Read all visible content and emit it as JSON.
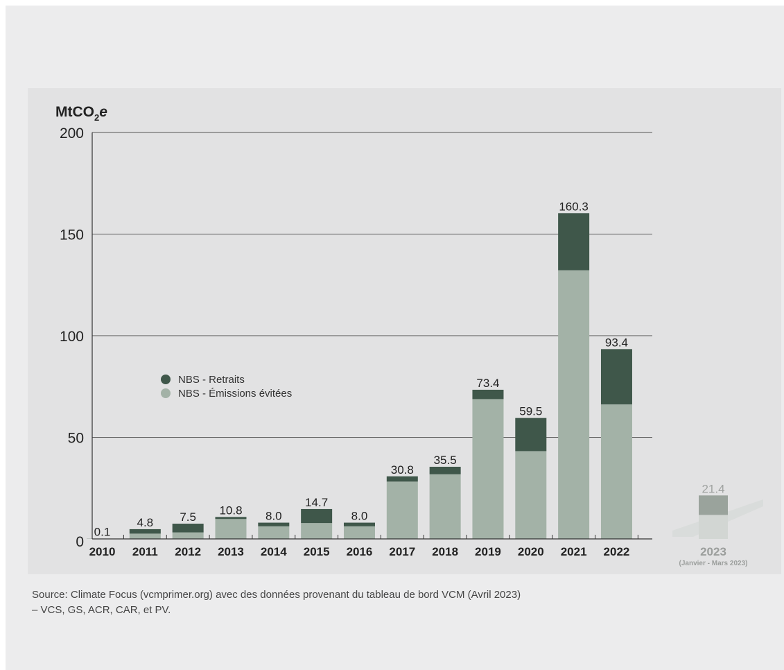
{
  "source_lines": [
    "Source: Climate Focus (vcmprimer.org) avec des données provenant du tableau de bord VCM (Avril 2023)",
    "– VCS, GS, ACR, CAR, et PV."
  ],
  "colors": {
    "retraits": "#3f574a",
    "emissions_evitees": "#a3b2a7",
    "partial_year_retraits": "#9aa39c",
    "partial_year_emissions": "#d2d6d3",
    "axis": "#333333",
    "grid": "#555555"
  },
  "chart_data": {
    "type": "bar",
    "stacked": true,
    "ylabel_main": "MtCO",
    "ylabel_sub": "2",
    "ylabel_italic": "e",
    "ylim": [
      0,
      200
    ],
    "yticks": [
      0,
      50,
      100,
      150,
      200
    ],
    "grid": true,
    "legend_position": "middle-left",
    "categories": [
      "2010",
      "2011",
      "2012",
      "2013",
      "2014",
      "2015",
      "2016",
      "2017",
      "2018",
      "2019",
      "2020",
      "2021",
      "2022"
    ],
    "series": [
      {
        "name": "NBS - Émissions évitées",
        "values": [
          0.05,
          2.6,
          3.2,
          9.8,
          6.2,
          7.8,
          6.2,
          28.2,
          31.8,
          68.8,
          43.2,
          132.2,
          66.2
        ]
      },
      {
        "name": "NBS - Retraits",
        "values": [
          0.05,
          2.2,
          4.3,
          1.0,
          1.8,
          6.9,
          1.8,
          2.6,
          3.7,
          4.6,
          16.3,
          28.1,
          27.2
        ]
      }
    ],
    "totals_labels": [
      "0.1",
      "4.8",
      "7.5",
      "10.8",
      "8.0",
      "14.7",
      "8.0",
      "30.8",
      "35.5",
      "73.4",
      "59.5",
      "160.3",
      "93.4"
    ],
    "partial_year": {
      "category": "2023",
      "note": "(Janvier - Mars 2023)",
      "total_label": "21.4",
      "retraits": 9.6,
      "emissions_evitees": 11.8
    }
  }
}
